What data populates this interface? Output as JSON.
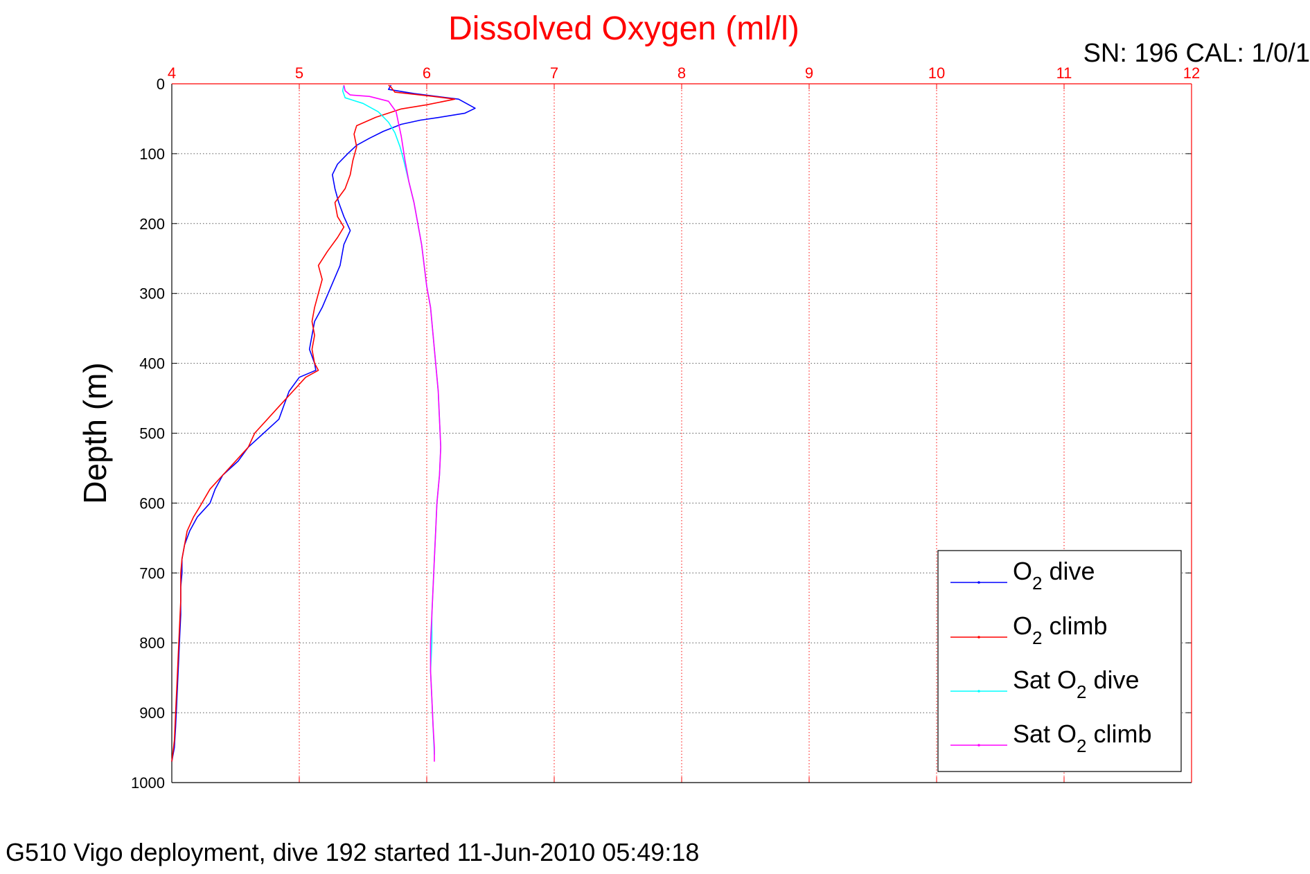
{
  "chart_data": {
    "type": "line",
    "title": "Dissolved Oxygen (ml/l)",
    "xlabel": "",
    "ylabel": "Depth (m)",
    "xlim": [
      4,
      12
    ],
    "ylim": [
      0,
      1000
    ],
    "y_reversed": true,
    "x_axis_position": "top",
    "x_ticks": [
      "4",
      "5",
      "6",
      "7",
      "8",
      "9",
      "10",
      "11",
      "12"
    ],
    "y_ticks": [
      "0",
      "100",
      "200",
      "300",
      "400",
      "500",
      "600",
      "700",
      "800",
      "900",
      "1000"
    ],
    "grid": true,
    "legend_position": "bottom-right",
    "series": [
      {
        "name_main": "O",
        "name_sub": "2",
        "name_rest": " dive",
        "color": "#0000ff",
        "points": [
          [
            5.72,
            2
          ],
          [
            5.7,
            8
          ],
          [
            5.9,
            14
          ],
          [
            6.25,
            22
          ],
          [
            6.38,
            35
          ],
          [
            6.3,
            42
          ],
          [
            6.1,
            48
          ],
          [
            5.95,
            52
          ],
          [
            5.8,
            58
          ],
          [
            5.66,
            68
          ],
          [
            5.55,
            78
          ],
          [
            5.45,
            88
          ],
          [
            5.38,
            100
          ],
          [
            5.3,
            115
          ],
          [
            5.26,
            130
          ],
          [
            5.28,
            150
          ],
          [
            5.31,
            170
          ],
          [
            5.35,
            190
          ],
          [
            5.4,
            210
          ],
          [
            5.35,
            230
          ],
          [
            5.32,
            260
          ],
          [
            5.25,
            290
          ],
          [
            5.18,
            320
          ],
          [
            5.12,
            340
          ],
          [
            5.1,
            360
          ],
          [
            5.08,
            380
          ],
          [
            5.12,
            400
          ],
          [
            5.13,
            410
          ],
          [
            5.0,
            420
          ],
          [
            4.92,
            440
          ],
          [
            4.88,
            460
          ],
          [
            4.84,
            480
          ],
          [
            4.72,
            500
          ],
          [
            4.6,
            520
          ],
          [
            4.52,
            540
          ],
          [
            4.4,
            560
          ],
          [
            4.34,
            580
          ],
          [
            4.3,
            600
          ],
          [
            4.2,
            620
          ],
          [
            4.14,
            640
          ],
          [
            4.1,
            660
          ],
          [
            4.08,
            680
          ],
          [
            4.08,
            700
          ],
          [
            4.07,
            720
          ],
          [
            4.07,
            760
          ],
          [
            4.06,
            800
          ],
          [
            4.05,
            840
          ],
          [
            4.04,
            880
          ],
          [
            4.03,
            920
          ],
          [
            4.02,
            950
          ],
          [
            4.0,
            970
          ]
        ]
      },
      {
        "name_main": "O",
        "name_sub": "2",
        "name_rest": " climb",
        "color": "#ff0000",
        "points": [
          [
            4.0,
            970
          ],
          [
            4.02,
            940
          ],
          [
            4.03,
            900
          ],
          [
            4.04,
            860
          ],
          [
            4.05,
            820
          ],
          [
            4.06,
            780
          ],
          [
            4.07,
            740
          ],
          [
            4.07,
            700
          ],
          [
            4.08,
            680
          ],
          [
            4.1,
            660
          ],
          [
            4.12,
            640
          ],
          [
            4.17,
            620
          ],
          [
            4.22,
            605
          ],
          [
            4.3,
            580
          ],
          [
            4.4,
            560
          ],
          [
            4.5,
            540
          ],
          [
            4.6,
            520
          ],
          [
            4.65,
            500
          ],
          [
            4.75,
            480
          ],
          [
            4.85,
            460
          ],
          [
            4.95,
            440
          ],
          [
            5.05,
            420
          ],
          [
            5.15,
            410
          ],
          [
            5.12,
            400
          ],
          [
            5.1,
            380
          ],
          [
            5.12,
            360
          ],
          [
            5.1,
            340
          ],
          [
            5.12,
            320
          ],
          [
            5.15,
            300
          ],
          [
            5.18,
            280
          ],
          [
            5.15,
            260
          ],
          [
            5.22,
            240
          ],
          [
            5.3,
            220
          ],
          [
            5.35,
            205
          ],
          [
            5.3,
            190
          ],
          [
            5.28,
            170
          ],
          [
            5.36,
            150
          ],
          [
            5.4,
            130
          ],
          [
            5.42,
            110
          ],
          [
            5.45,
            90
          ],
          [
            5.43,
            72
          ],
          [
            5.45,
            60
          ],
          [
            5.6,
            48
          ],
          [
            5.8,
            36
          ],
          [
            6.0,
            30
          ],
          [
            6.22,
            22
          ],
          [
            6.05,
            18
          ],
          [
            5.75,
            12
          ],
          [
            5.72,
            5
          ],
          [
            5.7,
            2
          ]
        ]
      },
      {
        "name_main": "Sat O",
        "name_sub": "2",
        "name_rest": " dive",
        "color": "#00ffff",
        "points": [
          [
            5.35,
            2
          ],
          [
            5.34,
            10
          ],
          [
            5.36,
            20
          ],
          [
            5.5,
            28
          ],
          [
            5.62,
            40
          ],
          [
            5.7,
            55
          ],
          [
            5.75,
            70
          ],
          [
            5.79,
            90
          ],
          [
            5.82,
            110
          ],
          [
            5.86,
            140
          ],
          [
            5.9,
            170
          ],
          [
            5.93,
            200
          ],
          [
            5.96,
            230
          ],
          [
            5.98,
            260
          ],
          [
            6.0,
            290
          ],
          [
            6.03,
            320
          ],
          [
            6.05,
            360
          ],
          [
            6.07,
            400
          ],
          [
            6.09,
            440
          ],
          [
            6.1,
            480
          ],
          [
            6.11,
            520
          ],
          [
            6.1,
            560
          ],
          [
            6.08,
            600
          ],
          [
            6.07,
            640
          ],
          [
            6.06,
            680
          ],
          [
            6.05,
            720
          ],
          [
            6.04,
            760
          ],
          [
            6.04,
            800
          ],
          [
            6.03,
            840
          ],
          [
            6.04,
            880
          ],
          [
            6.05,
            920
          ],
          [
            6.06,
            960
          ]
        ]
      },
      {
        "name_main": "Sat O",
        "name_sub": "2",
        "name_rest": " climb",
        "color": "#ff00ff",
        "points": [
          [
            6.06,
            970
          ],
          [
            6.06,
            950
          ],
          [
            6.05,
            920
          ],
          [
            6.04,
            880
          ],
          [
            6.03,
            840
          ],
          [
            6.03,
            800
          ],
          [
            6.04,
            760
          ],
          [
            6.05,
            720
          ],
          [
            6.06,
            680
          ],
          [
            6.07,
            640
          ],
          [
            6.08,
            600
          ],
          [
            6.1,
            560
          ],
          [
            6.11,
            520
          ],
          [
            6.1,
            480
          ],
          [
            6.09,
            440
          ],
          [
            6.07,
            400
          ],
          [
            6.05,
            360
          ],
          [
            6.03,
            320
          ],
          [
            6.0,
            290
          ],
          [
            5.98,
            260
          ],
          [
            5.96,
            230
          ],
          [
            5.93,
            200
          ],
          [
            5.9,
            170
          ],
          [
            5.86,
            140
          ],
          [
            5.83,
            110
          ],
          [
            5.8,
            75
          ],
          [
            5.76,
            40
          ],
          [
            5.7,
            25
          ],
          [
            5.55,
            18
          ],
          [
            5.4,
            16
          ],
          [
            5.36,
            10
          ],
          [
            5.35,
            2
          ]
        ]
      }
    ]
  },
  "header": {
    "sn_cal": "SN: 196  CAL: 1/0/1"
  },
  "footer": {
    "caption": "G510 Vigo deployment, dive 192 started 11-Jun-2010 05:49:18"
  }
}
